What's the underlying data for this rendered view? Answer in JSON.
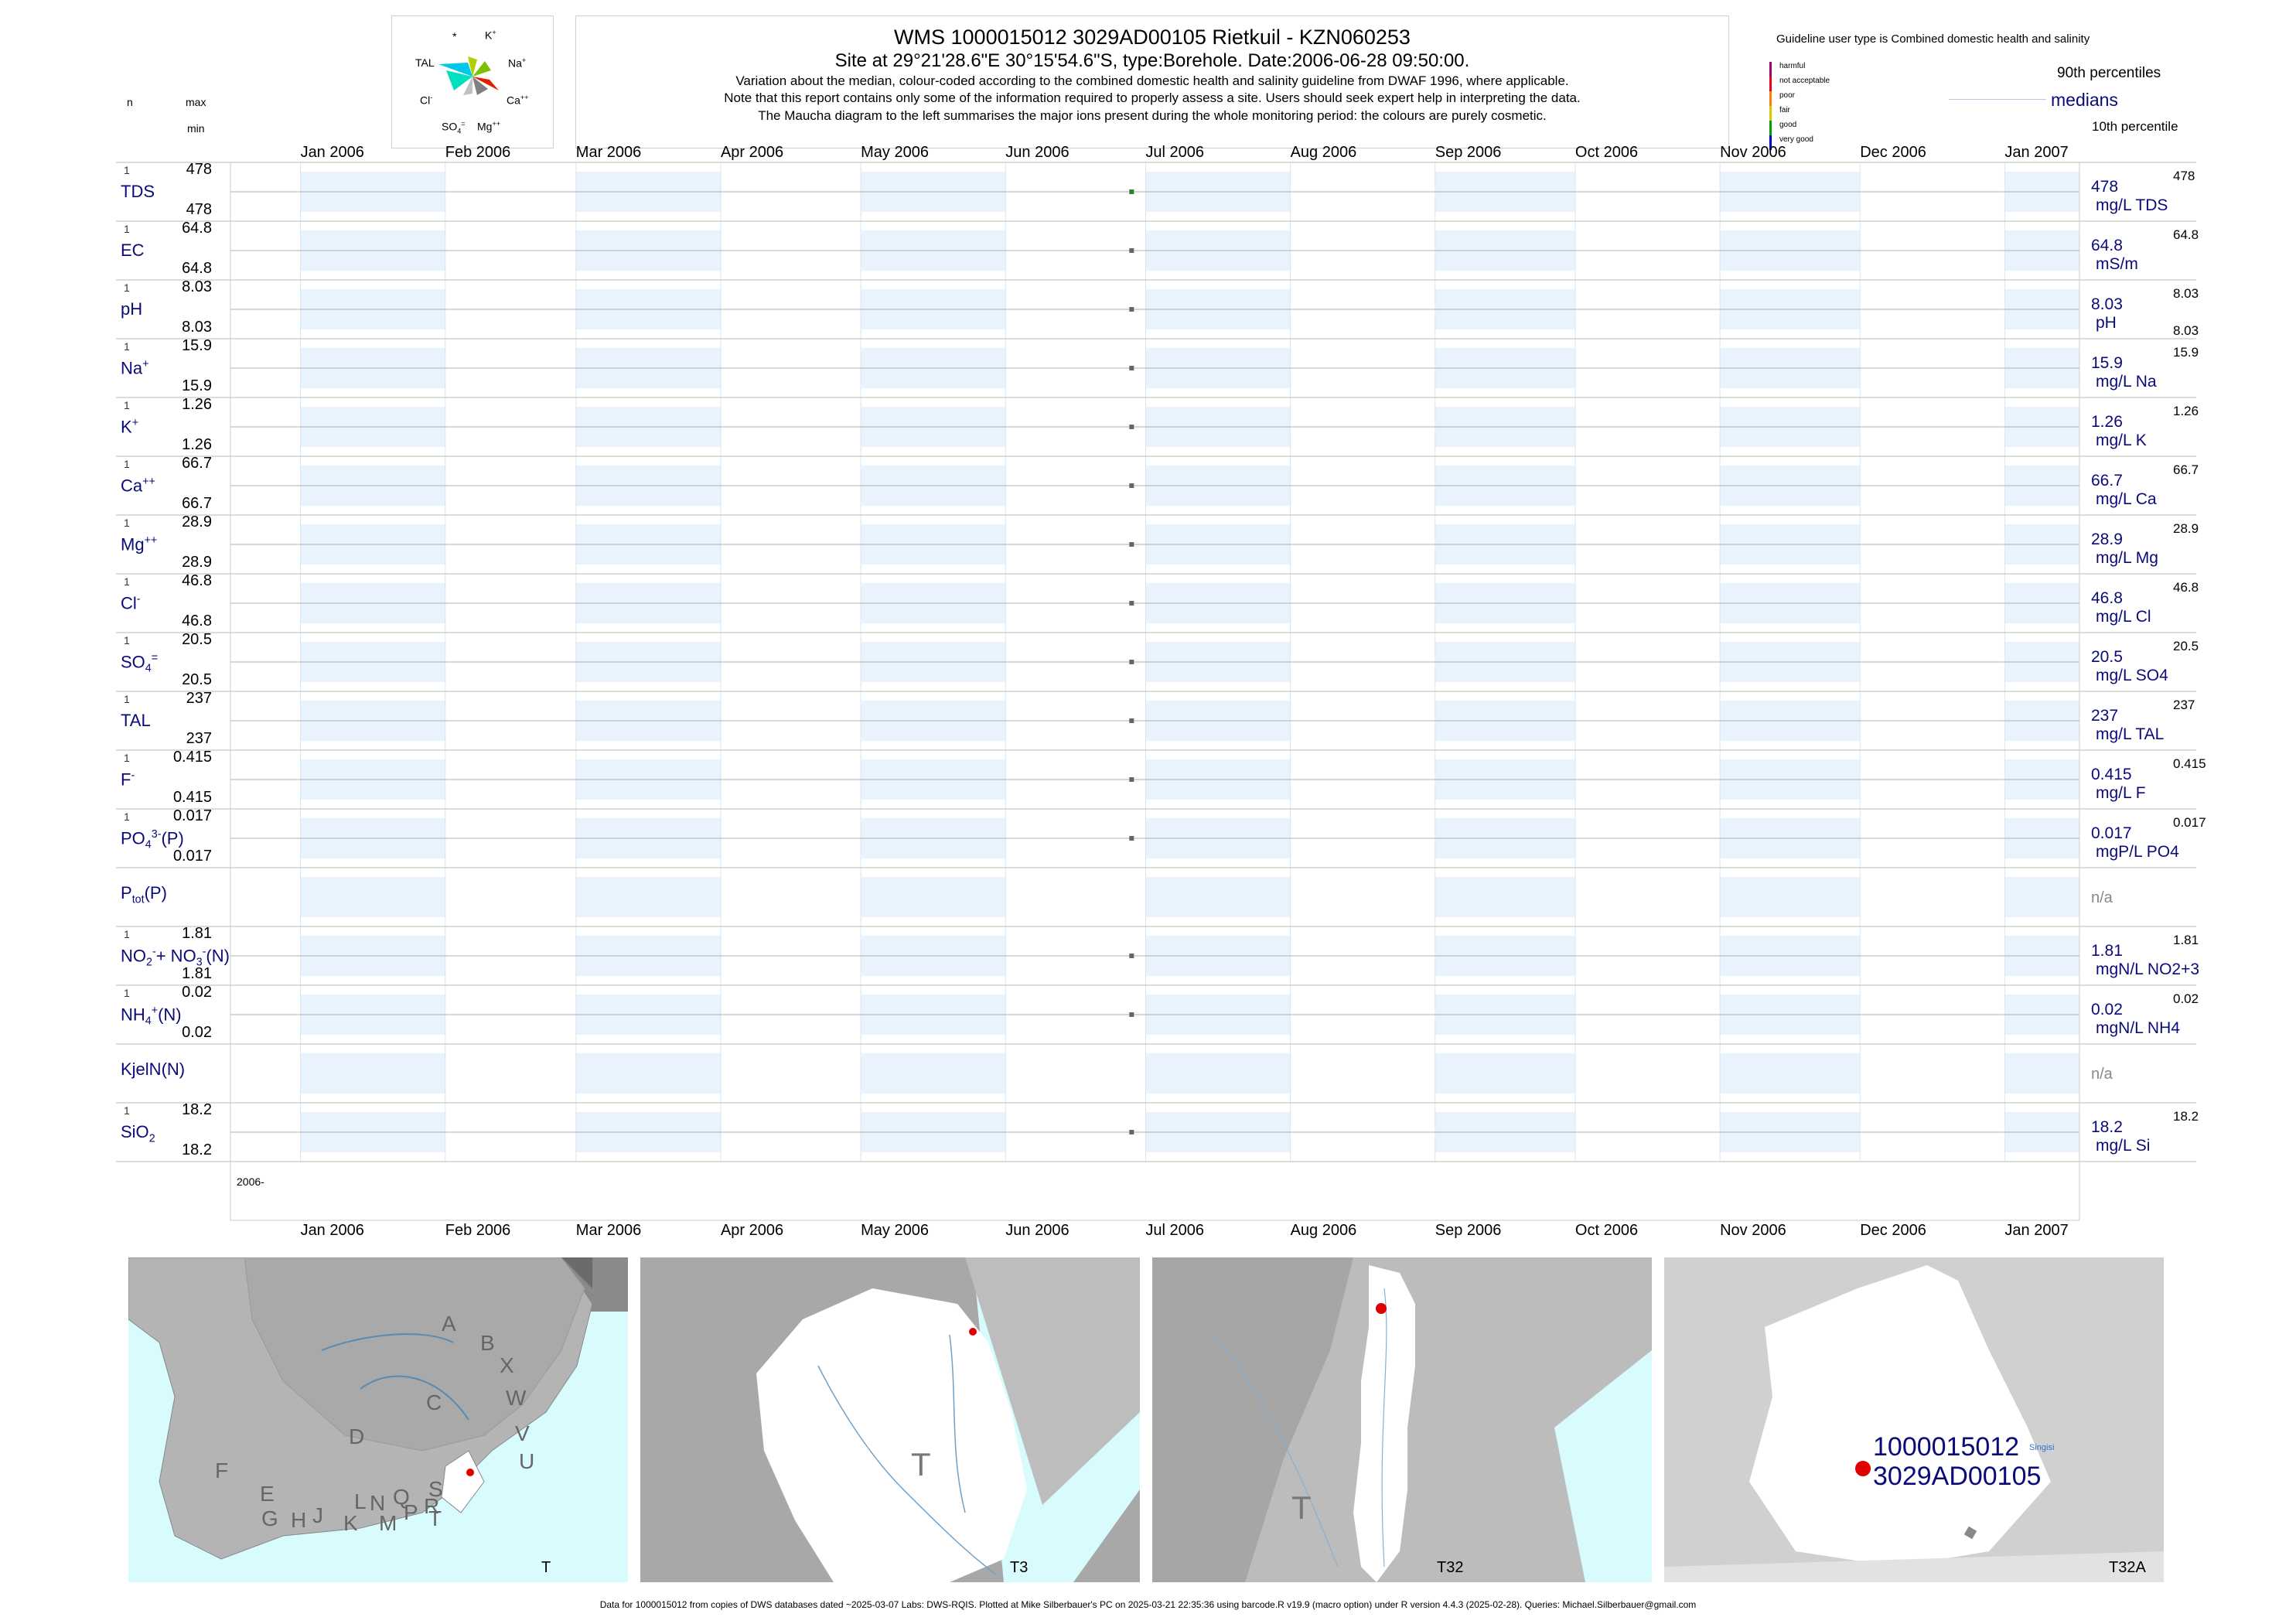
{
  "header": {
    "title": "WMS 1000015012 3029AD00105 Rietkuil - KZN060253",
    "site": "Site at 29°21'28.6\"E 30°15'54.6\"S, type:Borehole. Date:2006-06-28 09:50:00.",
    "note1": "Variation about the median,  colour-coded according to the combined domestic health and salinity guideline from DWAF 1996, where applicable.",
    "note2": "Note that this report contains only some of the information required to properly assess a site. Users should seek expert help in interpreting the data.",
    "note3": "The Maucha diagram to the left summarises the major ions present during the whole monitoring period: the colours are purely cosmetic."
  },
  "left_header": {
    "n": "n",
    "max": "max",
    "min": "min"
  },
  "maucha": {
    "labels": {
      "star": "*",
      "k": "K",
      "k_sup": "+",
      "tal": "TAL",
      "na": "Na",
      "na_sup": "+",
      "cl": "Cl",
      "cl_sup": "-",
      "ca": "Ca",
      "ca_sup": "++",
      "so4": "SO",
      "so4_sub": "4",
      "so4_sup": "=",
      "mg": "Mg",
      "mg_sup": "++"
    }
  },
  "legend": {
    "guideline": "Guideline user type is Combined domestic health and salinity",
    "categories": [
      "harmful",
      "not acceptable",
      "poor",
      "fair",
      "good",
      "very good"
    ],
    "category_colors": [
      "#a0006e",
      "#e8001c",
      "#ff7f00",
      "#d8c800",
      "#00a000",
      "#0000c8"
    ],
    "p90": "90th percentiles",
    "medians": "medians",
    "p10": "10th percentile"
  },
  "chart_data": {
    "type": "scatter",
    "x_axis": {
      "months": [
        "Jan 2006",
        "Feb 2006",
        "Mar 2006",
        "Apr 2006",
        "May 2006",
        "Jun 2006",
        "Jul 2006",
        "Aug 2006",
        "Sep 2006",
        "Oct 2006",
        "Nov 2006",
        "Dec 2006",
        "Jan 2007"
      ],
      "year_label": "2006-",
      "range": [
        "2005-12-17",
        "2007-01-17"
      ]
    },
    "sample_date": "2006-06-28",
    "rows": [
      {
        "label": "TDS",
        "n": "1",
        "max": "478",
        "min": "478",
        "value": 478,
        "median_text": "478",
        "unit": "mg/L TDS",
        "rmax": "478",
        "rmin": "",
        "color": "#2e7d32"
      },
      {
        "label": "EC",
        "n": "1",
        "max": "64.8",
        "min": "64.8",
        "value": 64.8,
        "median_text": "64.8",
        "unit": "mS/m",
        "rmax": "64.8",
        "rmin": "",
        "color": "#666666"
      },
      {
        "label": "pH",
        "n": "1",
        "max": "8.03",
        "min": "8.03",
        "value": 8.03,
        "median_text": "8.03",
        "unit": "pH",
        "rmax": "8.03",
        "rmin": "8.03",
        "color": "#666666"
      },
      {
        "label": "Na",
        "sup": "+",
        "n": "1",
        "max": "15.9",
        "min": "15.9",
        "value": 15.9,
        "median_text": "15.9",
        "unit": "mg/L Na",
        "rmax": "15.9",
        "rmin": "",
        "color": "#666666"
      },
      {
        "label": "K",
        "sup": "+",
        "n": "1",
        "max": "1.26",
        "min": "1.26",
        "value": 1.26,
        "median_text": "1.26",
        "unit": "mg/L K",
        "rmax": "1.26",
        "rmin": "",
        "color": "#666666"
      },
      {
        "label": "Ca",
        "sup": "++",
        "n": "1",
        "max": "66.7",
        "min": "66.7",
        "value": 66.7,
        "median_text": "66.7",
        "unit": "mg/L Ca",
        "rmax": "66.7",
        "rmin": "",
        "color": "#666666"
      },
      {
        "label": "Mg",
        "sup": "++",
        "n": "1",
        "max": "28.9",
        "min": "28.9",
        "value": 28.9,
        "median_text": "28.9",
        "unit": "mg/L Mg",
        "rmax": "28.9",
        "rmin": "",
        "color": "#666666"
      },
      {
        "label": "Cl",
        "sup": "-",
        "n": "1",
        "max": "46.8",
        "min": "46.8",
        "value": 46.8,
        "median_text": "46.8",
        "unit": "mg/L Cl",
        "rmax": "46.8",
        "rmin": "",
        "color": "#666666"
      },
      {
        "label": "SO",
        "sub": "4",
        "sup": "=",
        "n": "1",
        "max": "20.5",
        "min": "20.5",
        "value": 20.5,
        "median_text": "20.5",
        "unit": "mg/L SO4",
        "rmax": "20.5",
        "rmin": "",
        "color": "#666666"
      },
      {
        "label": "TAL",
        "n": "1",
        "max": "237",
        "min": "237",
        "value": 237,
        "median_text": "237",
        "unit": "mg/L TAL",
        "rmax": "237",
        "rmin": "",
        "color": "#666666"
      },
      {
        "label": "F",
        "sup": "-",
        "n": "1",
        "max": "0.415",
        "min": "0.415",
        "value": 0.415,
        "median_text": "0.415",
        "unit": "mg/L F",
        "rmax": "0.415",
        "rmin": "",
        "color": "#666666"
      },
      {
        "label": "PO",
        "sub": "4",
        "sup": "3-",
        "suffix": "(P)",
        "n": "1",
        "max": "0.017",
        "min": "0.017",
        "value": 0.017,
        "median_text": "0.017",
        "unit": "mgP/L PO4",
        "rmax": "0.017",
        "rmin": "",
        "color": "#666666"
      },
      {
        "label": "P",
        "sub": "tot",
        "suffix": "(P)",
        "n": "",
        "max": "",
        "min": "",
        "value": null,
        "median_text": "n/a",
        "unit": "",
        "rmax": "",
        "rmin": "",
        "color": "#666666"
      },
      {
        "label": "NO",
        "sub": "2",
        "sup": "-",
        "suffix": "+ NO",
        "sub2": "3",
        "sup2": "-",
        "suffix2": "(N)",
        "n": "1",
        "max": "1.81",
        "min": "1.81",
        "value": 1.81,
        "median_text": "1.81",
        "unit": "mgN/L NO2+3",
        "rmax": "1.81",
        "rmin": "",
        "color": "#666666"
      },
      {
        "label": "NH",
        "sub": "4",
        "sup": "+",
        "suffix": "(N)",
        "n": "1",
        "max": "0.02",
        "min": "0.02",
        "value": 0.02,
        "median_text": "0.02",
        "unit": "mgN/L NH4",
        "rmax": "0.02",
        "rmin": "",
        "color": "#666666"
      },
      {
        "label": "KjelN(N)",
        "n": "",
        "max": "",
        "min": "",
        "value": null,
        "median_text": "n/a",
        "unit": "",
        "rmax": "",
        "rmin": "",
        "color": "#666666"
      },
      {
        "label": "SiO",
        "sub": "2",
        "n": "1",
        "max": "18.2",
        "min": "18.2",
        "value": 18.2,
        "median_text": "18.2",
        "unit": "mg/L Si",
        "rmax": "18.2",
        "rmin": "",
        "color": "#666666"
      }
    ]
  },
  "maps": {
    "m1": {
      "label": "T",
      "regions": [
        "A",
        "B",
        "X",
        "W",
        "C",
        "V",
        "D",
        "U",
        "F",
        "E",
        "G",
        "H",
        "J",
        "K",
        "L",
        "N",
        "M",
        "Q",
        "P",
        "R",
        "S",
        "T"
      ]
    },
    "m2": {
      "label": "T3",
      "big": "T"
    },
    "m3": {
      "label": "T32",
      "big": "T"
    },
    "m4": {
      "label": "T32A",
      "id1": "1000015012",
      "id2": "3029AD00105",
      "town": "Singisi"
    }
  },
  "footer": "Data for 1000015012 from copies of DWS databases dated ~2025-03-07 Labs: DWS-RQIS. Plotted at Mike Silberbauer's PC on 2025-03-21 22:35:36 using barcode.R v19.9 (macro option) under R version 4.4.3 (2025-02-28). Queries: Michael.Silberbauer@gmail.com"
}
